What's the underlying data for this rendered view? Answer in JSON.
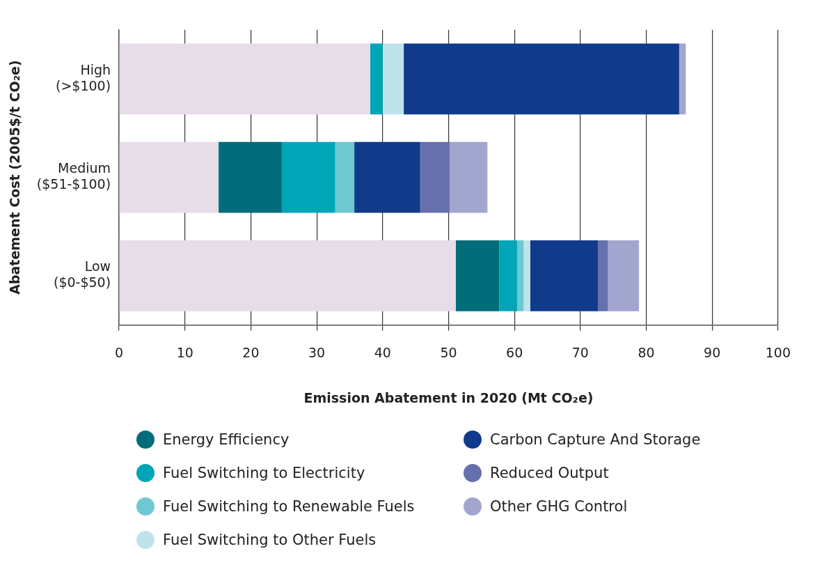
{
  "chart_data": {
    "type": "bar",
    "orientation": "horizontal",
    "stacked": true,
    "xlabel": "Emission Abatement in 2020 (Mt CO₂e)",
    "ylabel": "Abatement Cost (2005$/t CO₂e)",
    "categories": [
      "High\n(>$100)",
      "Medium\n($51-$100)",
      "Low\n($0-$50)"
    ],
    "series": [
      {
        "color": "#e6dde9",
        "values": [
          38.1,
          15.1,
          51.1
        ]
      },
      {
        "name": "Energy Efficiency",
        "color": "#006d7b",
        "values": [
          0,
          9.6,
          6.6
        ]
      },
      {
        "name": "Fuel Switching to Electricity",
        "color": "#00a5b8",
        "values": [
          1.9,
          8.1,
          2.7
        ]
      },
      {
        "name": "Fuel Switching to Renewable Fuels",
        "color": "#6ec8d2",
        "values": [
          0,
          2.9,
          1.0
        ]
      },
      {
        "name": "Fuel Switching to Other Fuels",
        "color": "#bfe3ea",
        "values": [
          3.2,
          0,
          1.0
        ]
      },
      {
        "name": "Carbon Capture And Storage",
        "color": "#123a8b",
        "values": [
          41.8,
          10.0,
          10.3
        ]
      },
      {
        "name": "Reduced Output",
        "color": "#6670ad",
        "values": [
          0,
          4.5,
          1.5
        ]
      },
      {
        "name": "Other GHG Control",
        "color": "#a2a6cf",
        "values": [
          1.0,
          5.7,
          4.7
        ]
      }
    ],
    "xlim": [
      0,
      100
    ],
    "xticks": [
      0,
      10,
      20,
      30,
      40,
      50,
      60,
      70,
      80,
      90,
      100
    ],
    "grid": "x",
    "legend": "bottom"
  }
}
